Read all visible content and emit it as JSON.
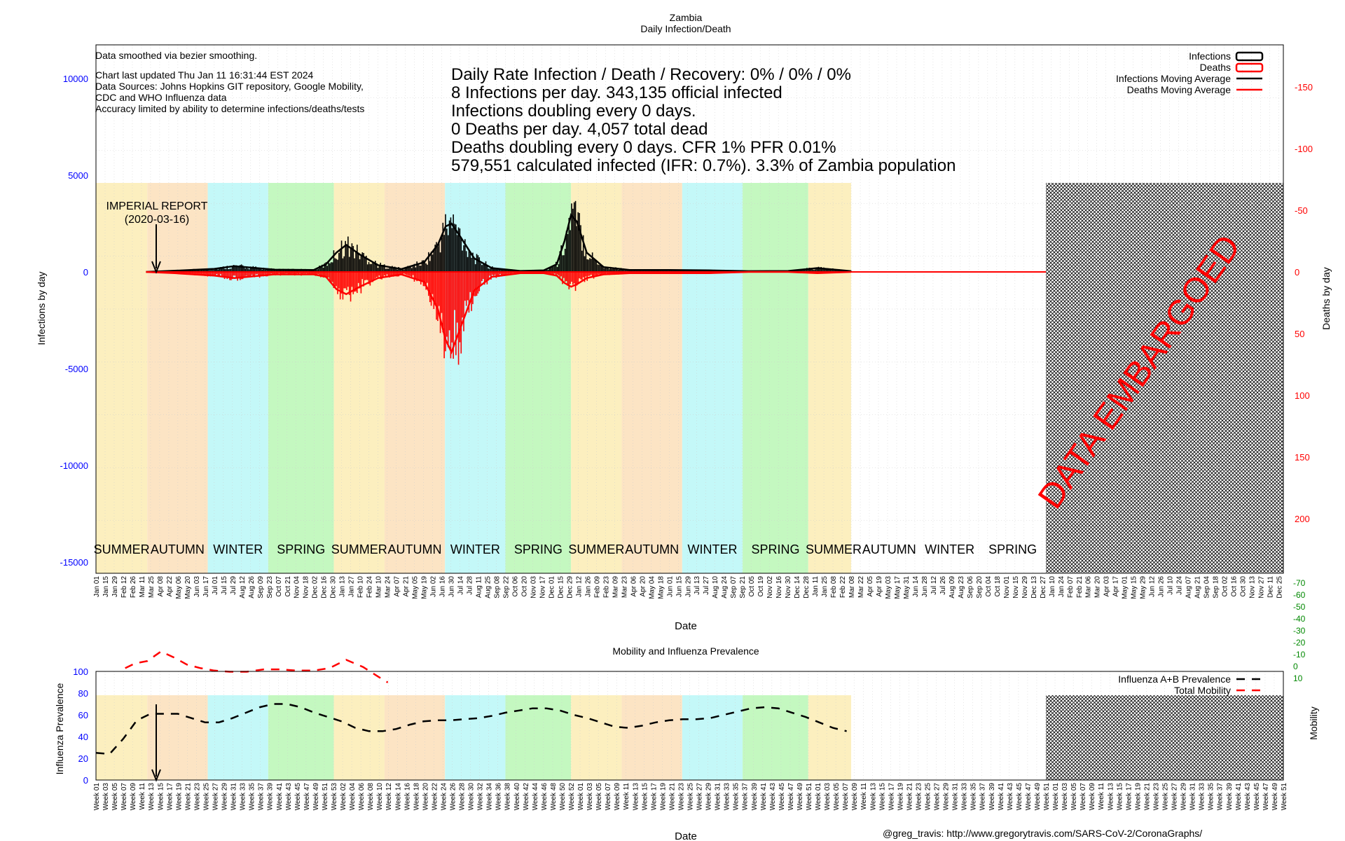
{
  "top_chart": {
    "title": "Zambia",
    "subtitle": "Daily Infection/Death",
    "xlabel": "Date",
    "ylabel_left": "Infections by day",
    "ylabel_right": "Deaths by day",
    "notes": [
      "Data smoothed via bezier smoothing.",
      "",
      "Chart last updated Thu Jan 11 16:31:44 EST 2024",
      "Data Sources: Johns Hopkins GIT repository, Google Mobility,",
      "CDC and WHO Influenza data",
      "Accuracy limited by ability to determine infections/deaths/tests"
    ],
    "stats": [
      "Daily Rate Infection / Death / Recovery: 0% / 0% / 0%",
      "8 Infections per day.  343,135 official infected",
      "Infections doubling every 0 days.",
      "0 Deaths per day.  4,057 total dead",
      "Deaths doubling every 0 days.  CFR 1%  PFR 0.01%",
      "579,551 calculated infected (IFR: 0.7%).  3.3% of Zambia population"
    ],
    "legend": [
      "Infections",
      "Deaths",
      "Infections Moving Average",
      "Deaths Moving Average"
    ],
    "annotation": [
      "IMPERIAL REPORT",
      "(2020-03-16)"
    ],
    "embargo_text": "DATA EMBARGOED",
    "left_ticks": [
      "10000",
      "5000",
      "0",
      "-5000",
      "-10000",
      "-15000"
    ],
    "right_ticks": [
      "-150",
      "-100",
      "-50",
      "0",
      "50",
      "100",
      "150",
      "200"
    ],
    "seasons": [
      "SUMMER",
      "AUTUMN",
      "WINTER",
      "SPRING",
      "SUMMER",
      "AUTUMN",
      "WINTER",
      "SPRING",
      "SUMMER",
      "AUTUMN",
      "WINTER",
      "SPRING",
      "SUMMER",
      "AUTUMN",
      "WINTER",
      "SPRING"
    ],
    "x_ticks": [
      "Jan 01",
      "Jan 15",
      "Jan 29",
      "Feb 12",
      "Feb 26",
      "Mar 11",
      "Mar 25",
      "Apr 08",
      "Apr 22",
      "May 06",
      "May 20",
      "Jun 03",
      "Jun 17",
      "Jul 01",
      "Jul 15",
      "Jul 29",
      "Aug 12",
      "Aug 26",
      "Sep 09",
      "Sep 23",
      "Oct 07",
      "Oct 21",
      "Nov 04",
      "Nov 18",
      "Dec 02",
      "Dec 16",
      "Dec 30",
      "Jan 13",
      "Jan 27",
      "Feb 10",
      "Feb 24",
      "Mar 10",
      "Mar 24",
      "Apr 07",
      "Apr 21",
      "May 05",
      "May 19",
      "Jun 02",
      "Jun 16",
      "Jun 30",
      "Jul 14",
      "Jul 28",
      "Aug 11",
      "Aug 25",
      "Sep 08",
      "Sep 22",
      "Oct 06",
      "Oct 20",
      "Nov 03",
      "Nov 17",
      "Dec 01",
      "Dec 15",
      "Dec 29",
      "Jan 12",
      "Jan 26",
      "Feb 09",
      "Feb 23",
      "Mar 09",
      "Mar 23",
      "Apr 06",
      "Apr 20",
      "May 04",
      "May 18",
      "Jun 01",
      "Jun 15",
      "Jun 29",
      "Jul 13",
      "Jul 27",
      "Aug 10",
      "Aug 24",
      "Sep 07",
      "Sep 21",
      "Oct 05",
      "Oct 19",
      "Nov 02",
      "Nov 16",
      "Nov 30",
      "Dec 14",
      "Dec 28",
      "Jan 11",
      "Jan 25",
      "Feb 08",
      "Feb 22",
      "Mar 08",
      "Mar 22",
      "Apr 05",
      "Apr 19",
      "May 03",
      "May 17",
      "May 31",
      "Jun 14",
      "Jun 28",
      "Jul 12",
      "Jul 26",
      "Aug 09",
      "Aug 23",
      "Sep 06",
      "Sep 20",
      "Oct 04",
      "Oct 18",
      "Nov 01",
      "Nov 15",
      "Nov 29",
      "Dec 13",
      "Dec 27",
      "Jan 10",
      "Jan 24",
      "Feb 07",
      "Feb 21",
      "Mar 06",
      "Mar 20",
      "Apr 03",
      "Apr 17",
      "May 01",
      "May 15",
      "May 29",
      "Jun 12",
      "Jun 26",
      "Jul 10",
      "Jul 24",
      "Aug 07",
      "Aug 21",
      "Sep 04",
      "Sep 18",
      "Oct 02",
      "Oct 16",
      "Oct 30",
      "Nov 13",
      "Nov 27",
      "Dec 11",
      "Dec 25"
    ]
  },
  "bottom_chart": {
    "title": "Mobility and Influenza Prevalence",
    "xlabel": "Date",
    "ylabel_left": "Influenza Prevalence",
    "ylabel_right": "Mobility",
    "legend": [
      "Influenza A+B Prevalence",
      "Total Mobility"
    ],
    "left_ticks": [
      "100",
      "80",
      "60",
      "40",
      "20",
      "0"
    ],
    "right_ticks": [
      "10",
      "0",
      "-10",
      "-20",
      "-30",
      "-40",
      "-50",
      "-60",
      "-70"
    ],
    "x_ticks": [
      "Week 01",
      "Week 03",
      "Week 05",
      "Week 07",
      "Week 09",
      "Week 11",
      "Week 13",
      "Week 15",
      "Week 17",
      "Week 19",
      "Week 21",
      "Week 23",
      "Week 25",
      "Week 27",
      "Week 29",
      "Week 31",
      "Week 33",
      "Week 35",
      "Week 37",
      "Week 39",
      "Week 41",
      "Week 43",
      "Week 45",
      "Week 47",
      "Week 49",
      "Week 51",
      "Week 53",
      "Week 02",
      "Week 04",
      "Week 06",
      "Week 08",
      "Week 10",
      "Week 12",
      "Week 14",
      "Week 16",
      "Week 18",
      "Week 20",
      "Week 22",
      "Week 24",
      "Week 26",
      "Week 28",
      "Week 30",
      "Week 32",
      "Week 34",
      "Week 36",
      "Week 38",
      "Week 40",
      "Week 42",
      "Week 44",
      "Week 46",
      "Week 48",
      "Week 50",
      "Week 52",
      "Week 01",
      "Week 03",
      "Week 05",
      "Week 07",
      "Week 09",
      "Week 11",
      "Week 13",
      "Week 15",
      "Week 17",
      "Week 19",
      "Week 21",
      "Week 23",
      "Week 25",
      "Week 27",
      "Week 29",
      "Week 31",
      "Week 33",
      "Week 35",
      "Week 37",
      "Week 39",
      "Week 41",
      "Week 43",
      "Week 45",
      "Week 47",
      "Week 49",
      "Week 51",
      "Week 01",
      "Week 03",
      "Week 05",
      "Week 07",
      "Week 09",
      "Week 11",
      "Week 13",
      "Week 15",
      "Week 17",
      "Week 19",
      "Week 21",
      "Week 23",
      "Week 25",
      "Week 27",
      "Week 29",
      "Week 31",
      "Week 33",
      "Week 35",
      "Week 37",
      "Week 39",
      "Week 41",
      "Week 43",
      "Week 45",
      "Week 47",
      "Week 49",
      "Week 51",
      "Week 01",
      "Week 03",
      "Week 05",
      "Week 07",
      "Week 09",
      "Week 11",
      "Week 13",
      "Week 15",
      "Week 17",
      "Week 19",
      "Week 21",
      "Week 23",
      "Week 25",
      "Week 27",
      "Week 29",
      "Week 31",
      "Week 33",
      "Week 35",
      "Week 37",
      "Week 39",
      "Week 41",
      "Week 43",
      "Week 45",
      "Week 47",
      "Week 49",
      "Week 51"
    ]
  },
  "credit": "@greg_travis: http://www.gregorytravis.com/SARS-CoV-2/CoronaGraphs/",
  "colors": {
    "summer": "#fcefbf",
    "autumn": "#fce4c4",
    "winter": "#c4f8f8",
    "spring": "#c4f8c0",
    "infections": "#000000",
    "deaths": "#ff0000",
    "axis_left": "#0000ff",
    "axis_right": "#ff0000",
    "axis_mobility": "#008800"
  },
  "chart_data": [
    {
      "type": "bar",
      "title": "Zambia",
      "subtitle": "Daily Infection/Death",
      "xlabel": "Date",
      "ylabel": "Infections by day",
      "y2label": "Deaths by day",
      "ylim": [
        -15000,
        11000
      ],
      "y2lim": [
        240,
        -180
      ],
      "x_range": [
        "2020-01-01",
        "2024-12-31"
      ],
      "data_end": "2023-03-08",
      "series": [
        {
          "name": "Infections Moving Average",
          "x": [
            "2020-03-18",
            "2020-05-01",
            "2020-07-01",
            "2020-08-01",
            "2020-10-01",
            "2020-12-01",
            "2020-12-20",
            "2021-01-05",
            "2021-01-20",
            "2021-02-10",
            "2021-03-10",
            "2021-04-15",
            "2021-05-20",
            "2021-06-10",
            "2021-06-22",
            "2021-07-01",
            "2021-07-15",
            "2021-08-05",
            "2021-09-01",
            "2021-10-15",
            "2021-11-20",
            "2021-12-10",
            "2021-12-22",
            "2022-01-01",
            "2022-01-10",
            "2022-01-25",
            "2022-02-20",
            "2022-04-01",
            "2022-06-01",
            "2022-08-01",
            "2022-10-01",
            "2022-12-01",
            "2023-01-15",
            "2023-03-08"
          ],
          "y": [
            0,
            60,
            160,
            300,
            120,
            100,
            400,
            1000,
            1400,
            900,
            350,
            150,
            500,
            1400,
            2350,
            2500,
            1800,
            700,
            200,
            50,
            80,
            400,
            1600,
            2950,
            2600,
            1000,
            250,
            100,
            100,
            80,
            40,
            50,
            200,
            40
          ]
        },
        {
          "name": "Deaths Moving Average",
          "x": [
            "2020-03-18",
            "2020-05-01",
            "2020-07-01",
            "2020-08-01",
            "2020-10-01",
            "2020-12-01",
            "2020-12-20",
            "2021-01-05",
            "2021-01-20",
            "2021-02-10",
            "2021-03-10",
            "2021-04-15",
            "2021-05-20",
            "2021-06-10",
            "2021-06-22",
            "2021-07-01",
            "2021-07-15",
            "2021-08-05",
            "2021-09-01",
            "2021-10-15",
            "2021-11-20",
            "2021-12-10",
            "2021-12-22",
            "2022-01-01",
            "2022-01-10",
            "2022-01-25",
            "2022-02-20",
            "2022-04-01",
            "2022-06-01",
            "2022-08-01",
            "2022-10-01",
            "2022-12-01",
            "2023-01-15",
            "2023-03-08"
          ],
          "y": [
            0,
            1,
            3,
            5,
            2,
            2,
            4,
            14,
            18,
            12,
            5,
            2,
            8,
            30,
            55,
            65,
            45,
            15,
            4,
            1,
            1,
            3,
            9,
            12,
            10,
            5,
            2,
            1,
            1,
            1,
            0,
            0,
            1,
            0
          ]
        }
      ]
    },
    {
      "type": "line",
      "title": "Mobility and Influenza Prevalence",
      "xlabel": "Date",
      "ylabel": "Influenza Prevalence",
      "y2label": "Mobility",
      "ylim": [
        0,
        100
      ],
      "y2lim": [
        -75,
        12
      ],
      "series": [
        {
          "name": "Influenza A+B Prevalence",
          "x": [
            "2020-01-01",
            "2020-01-22",
            "2020-02-12",
            "2020-03-04",
            "2020-03-25",
            "2020-04-15",
            "2020-05-06",
            "2020-05-27",
            "2020-06-17",
            "2020-07-08",
            "2020-07-29",
            "2020-08-19",
            "2020-09-09",
            "2020-09-30",
            "2020-10-21",
            "2020-11-11",
            "2020-12-02",
            "2020-12-23",
            "2021-01-13",
            "2021-02-03",
            "2021-02-24",
            "2021-03-17",
            "2021-04-07",
            "2021-04-28",
            "2021-05-19",
            "2021-06-09",
            "2021-06-30",
            "2021-07-21",
            "2021-08-11",
            "2021-09-01",
            "2021-09-22",
            "2021-10-13",
            "2021-11-03",
            "2021-11-24",
            "2021-12-15",
            "2022-01-05",
            "2022-01-26",
            "2022-02-16",
            "2022-03-09",
            "2022-03-30",
            "2022-04-20",
            "2022-05-11",
            "2022-06-01",
            "2022-06-22",
            "2022-07-13",
            "2022-08-03",
            "2022-08-24",
            "2022-09-14",
            "2022-10-05",
            "2022-10-26",
            "2022-11-16",
            "2022-12-07",
            "2022-12-28",
            "2023-01-18",
            "2023-02-08",
            "2023-03-01"
          ],
          "y": [
            25,
            24,
            38,
            55,
            61,
            61,
            61,
            57,
            53,
            53,
            57,
            62,
            67,
            70,
            70,
            67,
            62,
            58,
            54,
            48,
            45,
            45,
            47,
            51,
            54,
            55,
            55,
            56,
            57,
            59,
            62,
            64,
            66,
            66,
            64,
            60,
            57,
            53,
            49,
            48,
            50,
            53,
            55,
            56,
            56,
            57,
            60,
            63,
            66,
            67,
            66,
            62,
            58,
            53,
            48,
            45
          ]
        },
        {
          "name": "Total Mobility",
          "x": [
            "2020-02-15",
            "2020-03-01",
            "2020-03-20",
            "2020-04-10",
            "2020-04-30",
            "2020-05-20",
            "2020-06-10",
            "2020-07-01",
            "2020-07-25",
            "2020-08-20",
            "2020-09-15",
            "2020-10-10",
            "2020-11-05",
            "2020-12-01",
            "2020-12-25",
            "2021-01-20",
            "2021-02-15",
            "2021-03-10",
            "2021-03-25"
          ],
          "y": [
            2,
            -2,
            -4,
            -12,
            -7,
            -1,
            2,
            4,
            5,
            5,
            3,
            3,
            4,
            4,
            2,
            -5,
            1,
            9,
            14
          ]
        }
      ]
    }
  ]
}
